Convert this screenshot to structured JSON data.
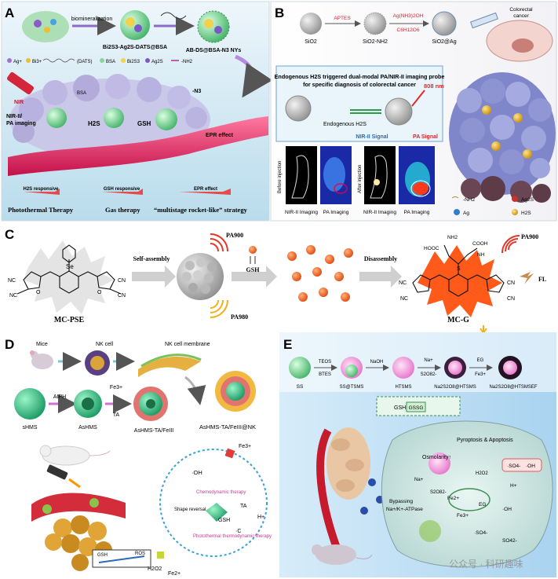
{
  "panels": {
    "A": {
      "letter": "A",
      "biomineralization": "biomineralization",
      "np1": "Bi2S3-Ag2S-DATS@BSA",
      "np2": "AB-DS@BSA-N3 NYs",
      "legend": [
        "Ag+",
        "Bi3+",
        "(DATS)",
        "BSA",
        "Bi2S3",
        "Ag2S",
        "-NH2"
      ],
      "nir": "NIR",
      "nir_ii": "NIR-II/\nPA imaging",
      "h2s": "H2S",
      "gsh": "GSH",
      "epr": "EPR effect",
      "bsa": "BSA",
      "n3": "-N3",
      "therapy1": "Photothermal Therapy",
      "therapy2": "Gas therapy",
      "strategy": "“multistage rocket-like” strategy",
      "arrow1": "H2S responsive",
      "arrow2": "GSH responsive",
      "arrow3": "EPR effect"
    },
    "B": {
      "letter": "B",
      "s1": "SiO2",
      "s2": "SiO2-NH2",
      "s3": "SiO2@Ag",
      "a1": "APTES",
      "a2a": "Ag(NH3)2OH",
      "a2b": "C6H12O6",
      "organ": "Colorectal cancer",
      "title1": "Endogenous H2S  triggered dual-modal PA/NIR-II imaging probe",
      "title2": "for specific diagnosis of colorectal cancer",
      "wave": "808 nm",
      "endo": "Endogenous  H2S",
      "nir_sig": "NIR-II Signal",
      "pa_sig": "PA Signal",
      "before": "Before injection",
      "after": "After injection",
      "img1": "NIR-II Imaging",
      "img2": "PA Imaging",
      "img3": "NIR-II Imaging",
      "img4": "PA Imaging",
      "leg": [
        "-NH2",
        "Ag2S",
        "Ag",
        "H2S"
      ]
    },
    "C": {
      "letter": "C",
      "pa900a": "PA900",
      "pa900b": "PA900",
      "pa980a": "PA980",
      "pa980b": "PA980",
      "self": "Self-assembly",
      "gsh": "GSH",
      "dis": "Disassembly",
      "mc_pse": "MC-PSE",
      "mc_g": "MC-G",
      "fl": "FL",
      "se": "Se",
      "cn": "CN",
      "nc": "NC",
      "nh2": "NH2",
      "hooc": "HOOC",
      "cooh": "COOH",
      "o": "O",
      "s": "S",
      "nh": "NH"
    },
    "D": {
      "letter": "D",
      "mice": "Mice",
      "nk": "NK cell",
      "nkm": "NK cell membrane",
      "shms": "sHMS",
      "aiph": "AIPH",
      "ashms": "AsHMS",
      "fe3": "Fe3+",
      "ta": "TA",
      "ashms_ta": "AsHMS-TA/FeIII",
      "final": "AsHMS-TA/FeIII@NK",
      "oh": "·OH",
      "chemo": "Chemodynamic therapy",
      "shape": "Shape reversal",
      "ptt": "Photothermal thermodynamic therapy",
      "gsh": "GSH",
      "ros": "ROS",
      "h2o2": "H2O2",
      "fe2": "Fe2+",
      "fe3b": "Fe3+",
      "ta2": "TA",
      "hplus": "H+",
      "cdot": "·C",
      "gsh2": "GSH"
    },
    "E": {
      "letter": "E",
      "ss": "SS",
      "teos": "TEOS",
      "btes": "BTES",
      "naoh": "NaOH",
      "na": "Na+",
      "s2o8": "S2O82-",
      "eg": "EG",
      "fe3": "Fe3+",
      "p1": "SS@TSMS",
      "p2": "HTSMS",
      "p3": "Na2S2O8@HTSMS",
      "p4": "Na2S2O8@HTSMSEF",
      "gsh": "GSH",
      "gssg": "GSSG",
      "pyro": "Pyroptosis & Apoptosis",
      "osm": "Osmolarity↑",
      "bypass": "Bypassing",
      "nka": "Na+/K+-ATPase",
      "so4": "·SO4-",
      "oh": "·OH",
      "h2o2": "H2O2",
      "hplus": "H+",
      "fe2": "Fe2+",
      "fe3b": "Fe3+",
      "eg2": "EG",
      "so42": "SO42-",
      "watermark": "公众号 · 科研趣味"
    }
  }
}
